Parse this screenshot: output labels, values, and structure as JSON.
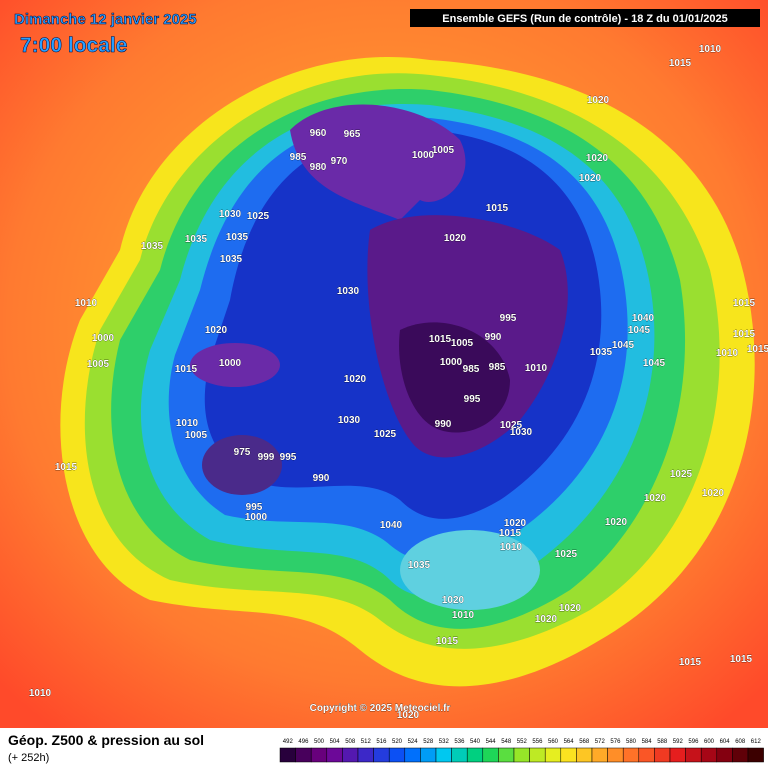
{
  "header": {
    "date": "Dimanche 12 janvier 2025",
    "time": "7:00 locale",
    "run": "Ensemble GEFS  (Run de contrôle)  -  18 Z du 01/01/2025"
  },
  "map": {
    "copyright": "Copyright © 2025 Meteociel.fr",
    "pressure_labels": [
      "1010",
      "1015",
      "1020",
      "1020",
      "1020",
      "1005",
      "1000",
      "1015",
      "1020",
      "960",
      "965",
      "985",
      "980",
      "970",
      "1030",
      "1025",
      "1035",
      "1035",
      "1035",
      "1035",
      "1010",
      "1000",
      "1005",
      "1020",
      "1015",
      "1000",
      "1030",
      "1020",
      "1030",
      "1025",
      "1010",
      "1005",
      "975",
      "999",
      "995",
      "990",
      "995",
      "1000",
      "1015",
      "995",
      "990",
      "1005",
      "1015",
      "1000",
      "985",
      "985",
      "1010",
      "995",
      "990",
      "1025",
      "1030",
      "1040",
      "1045",
      "1045",
      "1045",
      "1035",
      "1015",
      "1015",
      "1010",
      "1015",
      "1025",
      "1020",
      "1020",
      "1020",
      "1040",
      "1020",
      "1015",
      "1010",
      "1025",
      "1035",
      "1020",
      "1010",
      "1020",
      "1020",
      "1015",
      "1015",
      "1015",
      "1010",
      "1020"
    ]
  },
  "footer": {
    "title": "Géop. Z500 & pression au sol",
    "lead": "(+ 252h)",
    "scale": [
      "492",
      "496",
      "500",
      "504",
      "508",
      "512",
      "516",
      "520",
      "524",
      "528",
      "532",
      "536",
      "540",
      "544",
      "548",
      "552",
      "556",
      "560",
      "564",
      "568",
      "572",
      "576",
      "580",
      "584",
      "588",
      "592",
      "596",
      "600",
      "604",
      "608",
      "612"
    ]
  }
}
